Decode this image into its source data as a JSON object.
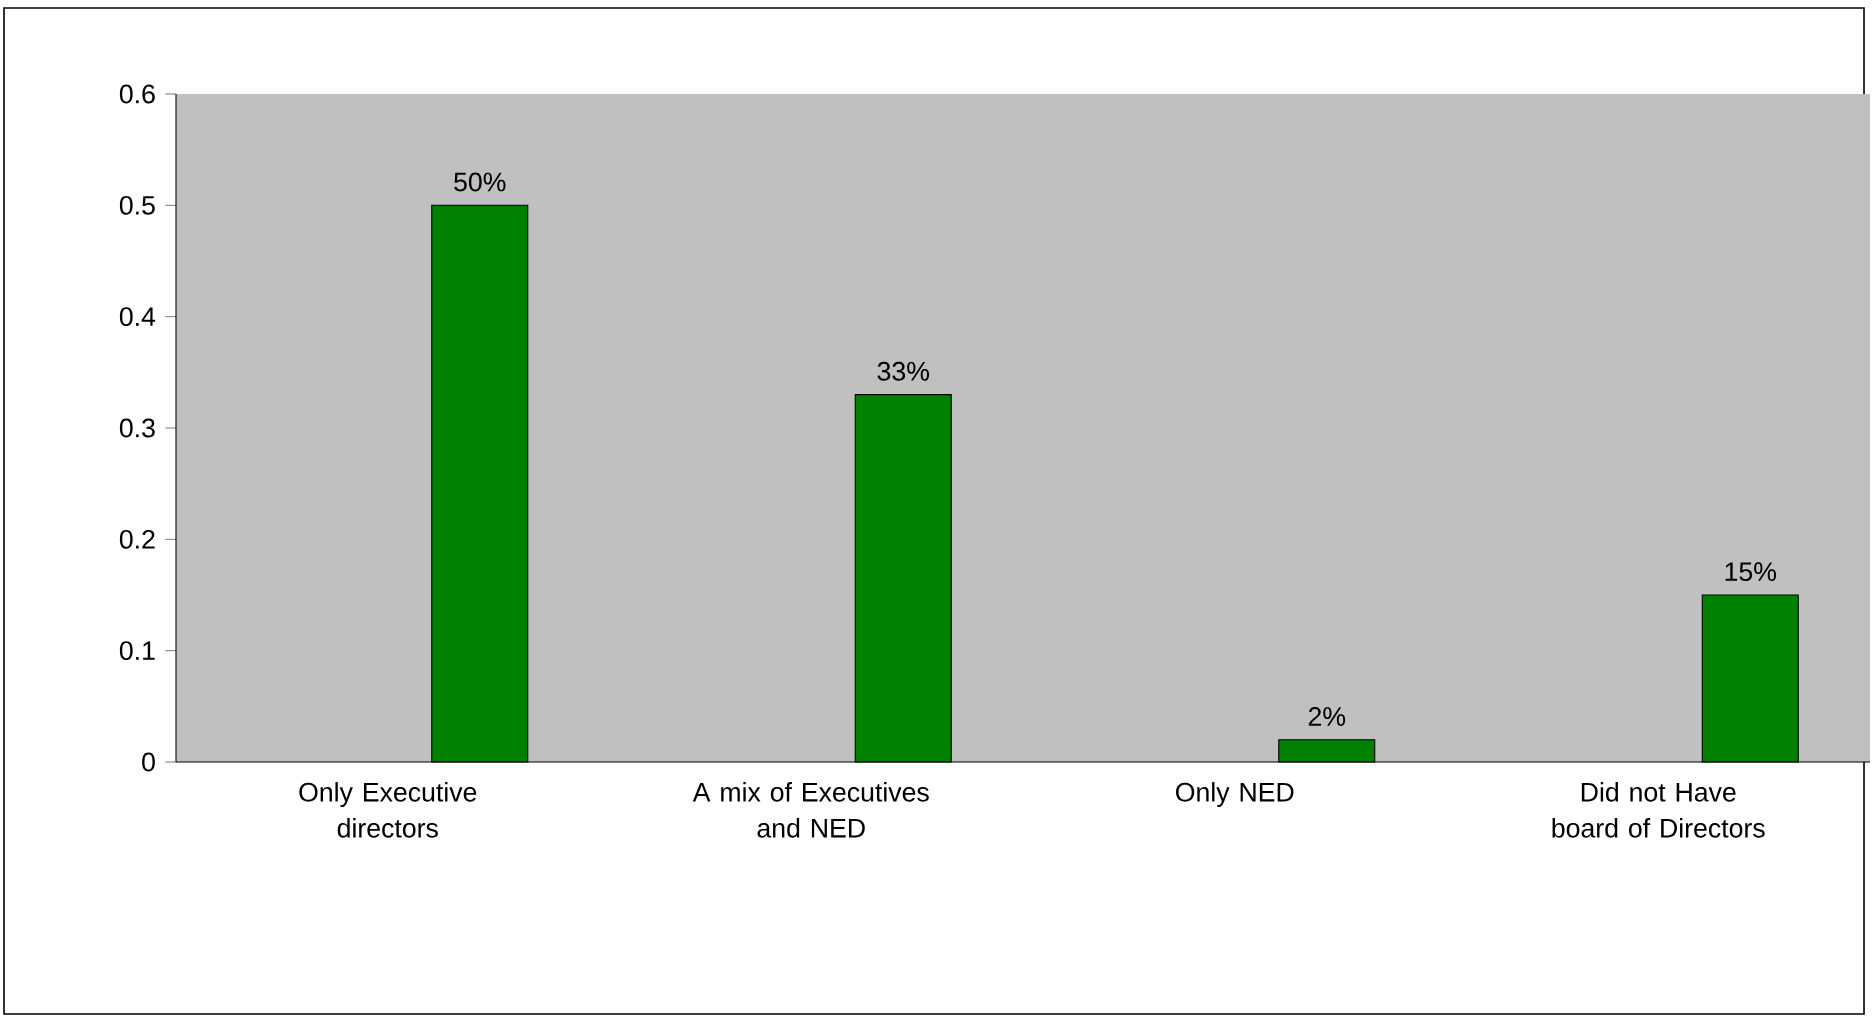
{
  "chart_data": {
    "type": "bar",
    "categories": [
      "Only Executive directors",
      "A mix of Executives and NED",
      "Only NED",
      "Did not Have board of Directors"
    ],
    "values": [
      0.5,
      0.33,
      0.02,
      0.15
    ],
    "value_labels": [
      "50%",
      "33%",
      "2%",
      "15%"
    ],
    "color": "#008000",
    "ylim": [
      0,
      0.6
    ],
    "yticks": [
      0,
      0.1,
      0.2,
      0.3,
      0.4,
      0.5,
      0.6
    ]
  }
}
